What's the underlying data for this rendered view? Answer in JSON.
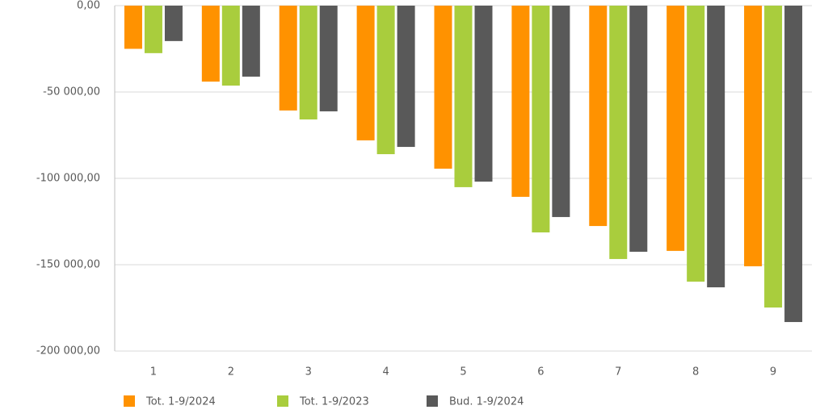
{
  "chart_data": {
    "type": "bar",
    "categories": [
      "1",
      "2",
      "3",
      "4",
      "5",
      "6",
      "7",
      "8",
      "9"
    ],
    "series": [
      {
        "name": "Tot. 1-9/2024",
        "color": "#ff9200",
        "values": [
          -25000,
          -44000,
          -60700,
          -78000,
          -94400,
          -110700,
          -127600,
          -142000,
          -150900
        ]
      },
      {
        "name": "Tot. 1-9/2023",
        "color": "#a9cd3d",
        "values": [
          -27500,
          -46300,
          -65900,
          -86000,
          -105100,
          -131300,
          -146700,
          -159800,
          -174800
        ]
      },
      {
        "name": "Bud. 1-9/2024",
        "color": "#595959",
        "values": [
          -20500,
          -41100,
          -61200,
          -81800,
          -101900,
          -122400,
          -142500,
          -163100,
          -183200
        ]
      }
    ],
    "ylim": [
      -200000,
      0
    ],
    "yticks": [
      {
        "value": 0,
        "label": "0,00"
      },
      {
        "value": -50000,
        "label": "-50 000,00"
      },
      {
        "value": -100000,
        "label": "-100 000,00"
      },
      {
        "value": -150000,
        "label": "-150 000,00"
      },
      {
        "value": -200000,
        "label": "-200 000,00"
      }
    ],
    "grid": true,
    "legend": "bottom"
  }
}
